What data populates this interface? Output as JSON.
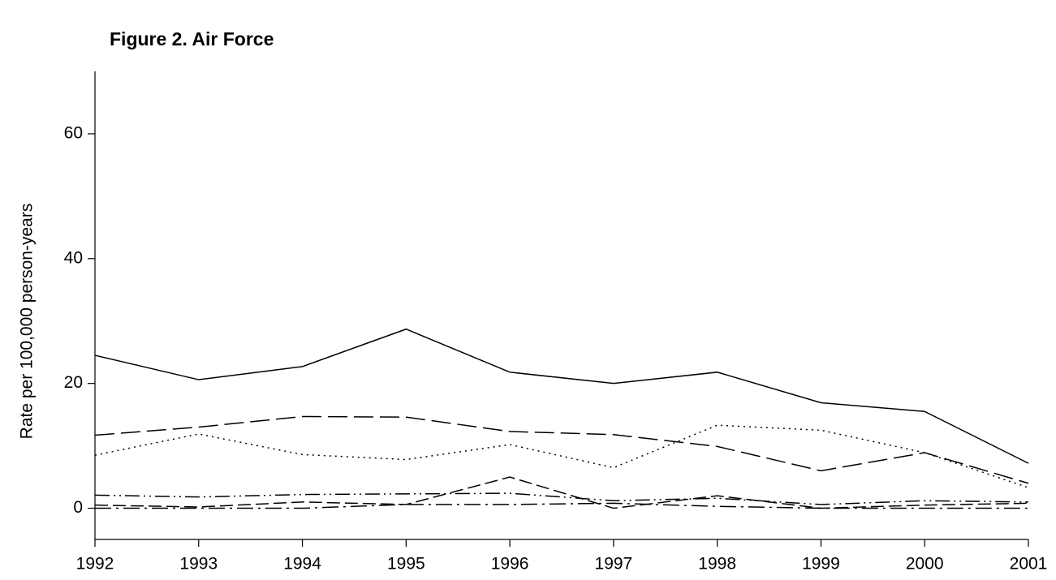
{
  "chart_data": {
    "type": "line",
    "title": "Figure 2.  Air Force",
    "y_label": "Rate per 100,000 person-years",
    "x": [
      1992,
      1993,
      1994,
      1995,
      1996,
      1997,
      1998,
      1999,
      2000,
      2001
    ],
    "xlim": [
      1992,
      2001
    ],
    "xticks": [
      1992,
      1993,
      1994,
      1995,
      1996,
      1997,
      1998,
      1999,
      2000,
      2001
    ],
    "ylim": [
      -5,
      70
    ],
    "yticks": [
      0,
      20,
      40,
      60
    ],
    "grid": false,
    "series": [
      {
        "color": "#000000",
        "dash": "none",
        "values": [
          24.5,
          20.6,
          22.7,
          28.7,
          21.8,
          20.0,
          21.8,
          16.9,
          15.5,
          7.2
        ]
      },
      {
        "color": "#000000",
        "dash": "24,8",
        "values": [
          11.7,
          13.0,
          14.7,
          14.6,
          12.3,
          11.8,
          9.9,
          6.0,
          8.9,
          4.0
        ]
      },
      {
        "color": "#000000",
        "dash": "2,5",
        "values": [
          8.5,
          11.9,
          8.6,
          7.8,
          10.2,
          6.5,
          13.3,
          12.5,
          8.9,
          3.3
        ]
      },
      {
        "color": "#000000",
        "dash": "18,5,2,5,2,5",
        "values": [
          2.1,
          1.8,
          2.2,
          2.3,
          2.4,
          1.2,
          1.6,
          0.6,
          1.2,
          1.0
        ]
      },
      {
        "color": "#000000",
        "dash": "16,6",
        "values": [
          0.5,
          0.2,
          1.0,
          0.6,
          5.0,
          0.0,
          2.0,
          0.0,
          0.5,
          0.8
        ]
      },
      {
        "color": "#000000",
        "dash": "20,6,3,6",
        "values": [
          0.0,
          0.0,
          0.0,
          0.6,
          0.6,
          0.8,
          0.3,
          0.0,
          0.0,
          0.0
        ]
      }
    ]
  }
}
